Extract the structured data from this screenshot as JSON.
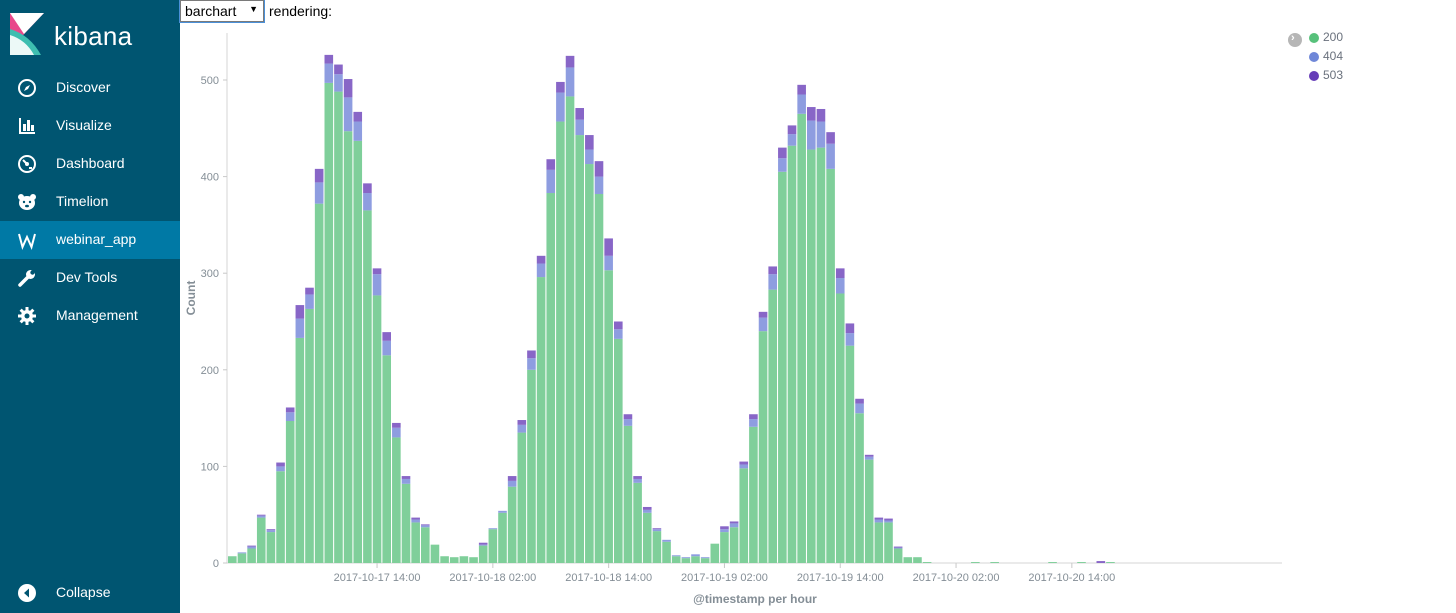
{
  "app": {
    "name": "kibana",
    "colors": {
      "sidebar": "#005571",
      "sidebar_active": "#0079a5"
    }
  },
  "sidebar": {
    "items": [
      {
        "label": "Discover",
        "icon": "compass-icon"
      },
      {
        "label": "Visualize",
        "icon": "bar-chart-icon"
      },
      {
        "label": "Dashboard",
        "icon": "dashboard-gauge-icon"
      },
      {
        "label": "Timelion",
        "icon": "timelion-bear-icon"
      },
      {
        "label": "webinar_app",
        "icon": "letter-w-icon",
        "active": true
      },
      {
        "label": "Dev Tools",
        "icon": "wrench-icon"
      },
      {
        "label": "Management",
        "icon": "gear-icon"
      }
    ],
    "collapse_label": "Collapse"
  },
  "controls": {
    "select_value": "barchart",
    "rendering_label": "rendering:"
  },
  "chart_data": {
    "type": "bar",
    "stacked": true,
    "title": "",
    "xlabel": "@timestamp per hour",
    "ylabel": "Count",
    "ylim": [
      0,
      550
    ],
    "yticks": [
      0,
      100,
      200,
      300,
      400,
      500
    ],
    "xtick_labels": [
      {
        "label": "2017-10-17 14:00",
        "index": 15
      },
      {
        "label": "2017-10-18 02:00",
        "index": 27
      },
      {
        "label": "2017-10-18 14:00",
        "index": 39
      },
      {
        "label": "2017-10-19 02:00",
        "index": 51
      },
      {
        "label": "2017-10-19 14:00",
        "index": 63
      },
      {
        "label": "2017-10-20 02:00",
        "index": 75
      },
      {
        "label": "2017-10-20 14:00",
        "index": 87
      }
    ],
    "grid": false,
    "legend_position": "top-right",
    "series": [
      {
        "name": "200",
        "color": "#7fcf9a",
        "values": [
          7,
          10,
          15,
          47,
          32,
          95,
          147,
          233,
          263,
          372,
          497,
          488,
          447,
          437,
          365,
          277,
          215,
          130,
          82,
          42,
          37,
          19,
          7,
          6,
          7,
          6,
          18,
          35,
          52,
          79,
          135,
          200,
          296,
          383,
          457,
          483,
          443,
          413,
          382,
          303,
          232,
          142,
          83,
          52,
          33,
          22,
          7,
          5,
          7,
          5,
          20,
          32,
          37,
          98,
          141,
          240,
          283,
          405,
          432,
          465,
          428,
          430,
          408,
          279,
          225,
          155,
          107,
          42,
          42,
          15,
          6,
          6,
          1,
          0,
          0,
          0,
          0,
          1,
          0,
          1,
          0,
          0,
          0,
          0,
          0,
          1,
          0,
          0,
          1,
          0,
          0,
          1,
          0,
          0,
          0
        ]
      },
      {
        "name": "404",
        "color": "#8e9de0",
        "values": [
          0,
          1,
          2,
          2,
          2,
          5,
          9,
          20,
          15,
          22,
          20,
          18,
          35,
          20,
          18,
          22,
          15,
          10,
          5,
          3,
          2,
          0,
          0,
          0,
          0,
          0,
          1,
          1,
          2,
          6,
          8,
          12,
          14,
          24,
          30,
          30,
          16,
          15,
          18,
          15,
          10,
          7,
          4,
          3,
          2,
          2,
          1,
          1,
          2,
          1,
          0,
          3,
          4,
          4,
          8,
          14,
          16,
          14,
          12,
          20,
          30,
          27,
          26,
          16,
          13,
          10,
          3,
          3,
          2,
          1,
          0,
          0,
          0,
          0,
          0,
          0,
          0,
          0,
          0,
          0,
          0,
          0,
          0,
          0,
          0,
          0,
          0,
          0,
          0,
          0,
          0,
          0,
          0,
          0,
          0
        ]
      },
      {
        "name": "503",
        "color": "#8866c7",
        "values": [
          0,
          0,
          1,
          1,
          1,
          4,
          5,
          14,
          7,
          14,
          9,
          10,
          19,
          10,
          10,
          6,
          9,
          5,
          3,
          2,
          1,
          0,
          0,
          0,
          0,
          0,
          2,
          0,
          0,
          5,
          5,
          8,
          8,
          11,
          11,
          12,
          12,
          15,
          16,
          18,
          8,
          5,
          3,
          3,
          1,
          0,
          0,
          0,
          0,
          0,
          0,
          3,
          2,
          3,
          5,
          6,
          8,
          11,
          9,
          10,
          14,
          13,
          12,
          10,
          10,
          5,
          2,
          2,
          2,
          1,
          0,
          0,
          0,
          0,
          0,
          0,
          0,
          0,
          0,
          0,
          0,
          0,
          0,
          0,
          0,
          0,
          0,
          0,
          0,
          0,
          2,
          0,
          0,
          0,
          0
        ]
      }
    ]
  }
}
